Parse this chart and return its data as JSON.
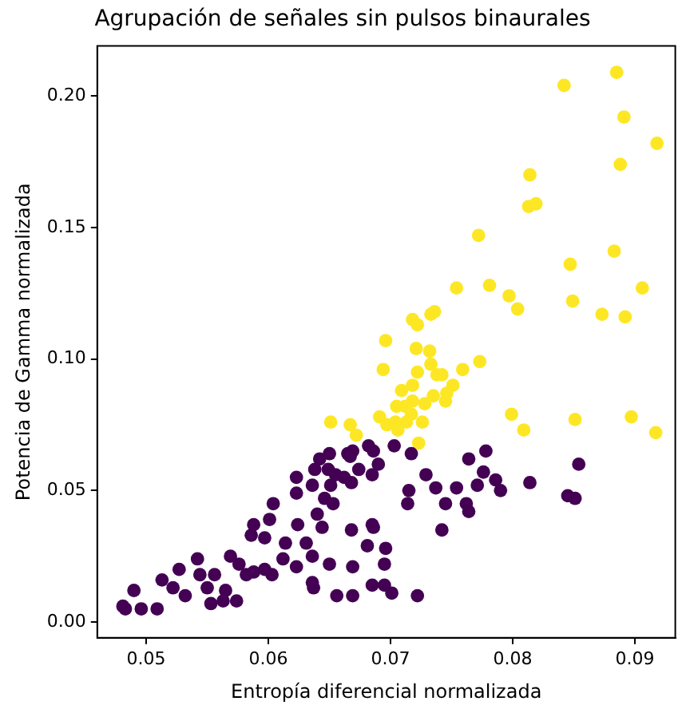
{
  "chart_data": {
    "type": "scatter",
    "title": "Agrupación de señales sin pulsos binaurales",
    "xlabel": "Entropía diferencial normalizada",
    "ylabel": "Potencia de Gamma normalizada",
    "xlim": [
      0.046,
      0.0933
    ],
    "ylim": [
      -0.006,
      0.219
    ],
    "xticks": [
      0.05,
      0.06,
      0.07,
      0.08,
      0.09
    ],
    "yticks": [
      {
        "value": 0,
        "label": "0.00"
      },
      {
        "value": 0.05,
        "label": "0.05"
      },
      {
        "value": 0.1,
        "label": "0.10"
      },
      {
        "value": 0.15,
        "label": "0.15"
      },
      {
        "value": 0.2,
        "label": "0.20"
      }
    ],
    "grid": false,
    "legend": false,
    "marker": "circle",
    "series": [
      {
        "color": "#440154",
        "x": [
          0.0483,
          0.049,
          0.0481,
          0.0496,
          0.0509,
          0.0513,
          0.0522,
          0.0527,
          0.0532,
          0.0542,
          0.0544,
          0.055,
          0.0553,
          0.0556,
          0.0565,
          0.0563,
          0.0574,
          0.0569,
          0.0576,
          0.0582,
          0.0588,
          0.0597,
          0.0603,
          0.0601,
          0.0604,
          0.0588,
          0.0586,
          0.0597,
          0.0612,
          0.0614,
          0.0623,
          0.0624,
          0.0623,
          0.0623,
          0.0631,
          0.0636,
          0.0636,
          0.064,
          0.0636,
          0.0638,
          0.0642,
          0.0649,
          0.065,
          0.0646,
          0.0651,
          0.0644,
          0.065,
          0.0637,
          0.0655,
          0.0662,
          0.0668,
          0.0665,
          0.0674,
          0.0669,
          0.0682,
          0.0685,
          0.069,
          0.0668,
          0.0686,
          0.0681,
          0.0669,
          0.0656,
          0.0669,
          0.0685,
          0.0695,
          0.0696,
          0.0695,
          0.0667,
          0.0686,
          0.0703,
          0.0717,
          0.0653,
          0.0778,
          0.0764,
          0.0776,
          0.0771,
          0.0786,
          0.079,
          0.0814,
          0.0854,
          0.0845,
          0.0851,
          0.0729,
          0.0737,
          0.0754,
          0.0715,
          0.0714,
          0.0745,
          0.0762,
          0.0764,
          0.0685,
          0.0742,
          0.0701,
          0.0722
        ],
        "values": [
          0.005,
          0.012,
          0.006,
          0.005,
          0.005,
          0.016,
          0.013,
          0.02,
          0.01,
          0.024,
          0.018,
          0.013,
          0.007,
          0.018,
          0.012,
          0.008,
          0.008,
          0.025,
          0.022,
          0.018,
          0.019,
          0.02,
          0.018,
          0.039,
          0.045,
          0.037,
          0.033,
          0.032,
          0.024,
          0.03,
          0.021,
          0.037,
          0.055,
          0.049,
          0.03,
          0.025,
          0.015,
          0.041,
          0.052,
          0.058,
          0.062,
          0.058,
          0.064,
          0.047,
          0.052,
          0.036,
          0.022,
          0.013,
          0.056,
          0.055,
          0.053,
          0.064,
          0.058,
          0.065,
          0.067,
          0.056,
          0.06,
          0.035,
          0.036,
          0.029,
          0.021,
          0.01,
          0.01,
          0.014,
          0.022,
          0.028,
          0.014,
          0.063,
          0.065,
          0.067,
          0.064,
          0.045,
          0.065,
          0.062,
          0.057,
          0.052,
          0.054,
          0.05,
          0.053,
          0.06,
          0.048,
          0.047,
          0.056,
          0.051,
          0.051,
          0.05,
          0.045,
          0.045,
          0.045,
          0.042,
          0.037,
          0.035,
          0.011,
          0.01
        ]
      },
      {
        "color": "#fde725",
        "x": [
          0.0842,
          0.0885,
          0.0891,
          0.0918,
          0.0888,
          0.0814,
          0.0813,
          0.0819,
          0.0772,
          0.0847,
          0.0883,
          0.0754,
          0.0781,
          0.0797,
          0.0804,
          0.0849,
          0.0873,
          0.0892,
          0.0906,
          0.0773,
          0.0759,
          0.0751,
          0.0799,
          0.0809,
          0.0851,
          0.0897,
          0.0917,
          0.0696,
          0.0721,
          0.0732,
          0.0718,
          0.0722,
          0.0733,
          0.0736,
          0.0694,
          0.0722,
          0.0733,
          0.0738,
          0.0742,
          0.0718,
          0.0709,
          0.0746,
          0.0745,
          0.0735,
          0.0728,
          0.0718,
          0.0705,
          0.0712,
          0.0691,
          0.0697,
          0.0706,
          0.0717,
          0.0726,
          0.0713,
          0.0704,
          0.0672,
          0.0667,
          0.0651,
          0.0723
        ],
        "values": [
          0.204,
          0.209,
          0.192,
          0.182,
          0.174,
          0.17,
          0.158,
          0.159,
          0.147,
          0.136,
          0.141,
          0.127,
          0.128,
          0.124,
          0.119,
          0.122,
          0.117,
          0.116,
          0.127,
          0.099,
          0.096,
          0.09,
          0.079,
          0.073,
          0.077,
          0.078,
          0.072,
          0.107,
          0.104,
          0.103,
          0.115,
          0.113,
          0.117,
          0.118,
          0.096,
          0.095,
          0.098,
          0.094,
          0.094,
          0.09,
          0.088,
          0.087,
          0.084,
          0.086,
          0.083,
          0.084,
          0.082,
          0.082,
          0.078,
          0.075,
          0.073,
          0.079,
          0.076,
          0.076,
          0.076,
          0.071,
          0.075,
          0.076,
          0.068
        ]
      }
    ]
  }
}
